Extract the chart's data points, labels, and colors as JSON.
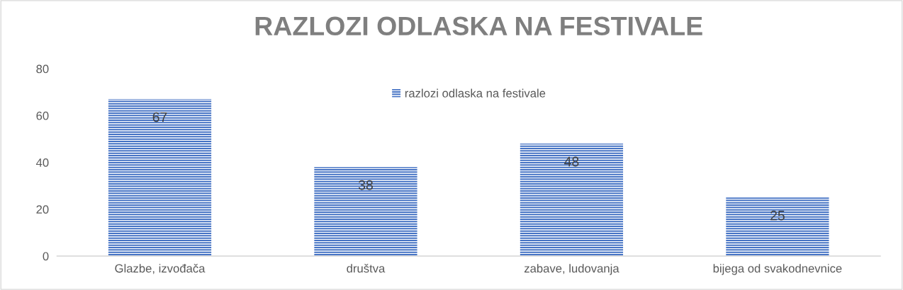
{
  "chart_data": {
    "type": "bar",
    "title": "RAZLOZI ODLASKA NA FESTIVALE",
    "categories": [
      "Glazbe, izvođača",
      "društva",
      "zabave, ludovanja",
      "bijega od svakodnevnice"
    ],
    "series": [
      {
        "name": "razlozi odlaska na festivale",
        "color": "#4472c4",
        "values": [
          67,
          38,
          48,
          25
        ]
      }
    ],
    "ylim": [
      0,
      80
    ],
    "yticks": [
      0,
      20,
      40,
      60,
      80
    ],
    "grid": false,
    "legend": "top",
    "data_labels": true
  }
}
